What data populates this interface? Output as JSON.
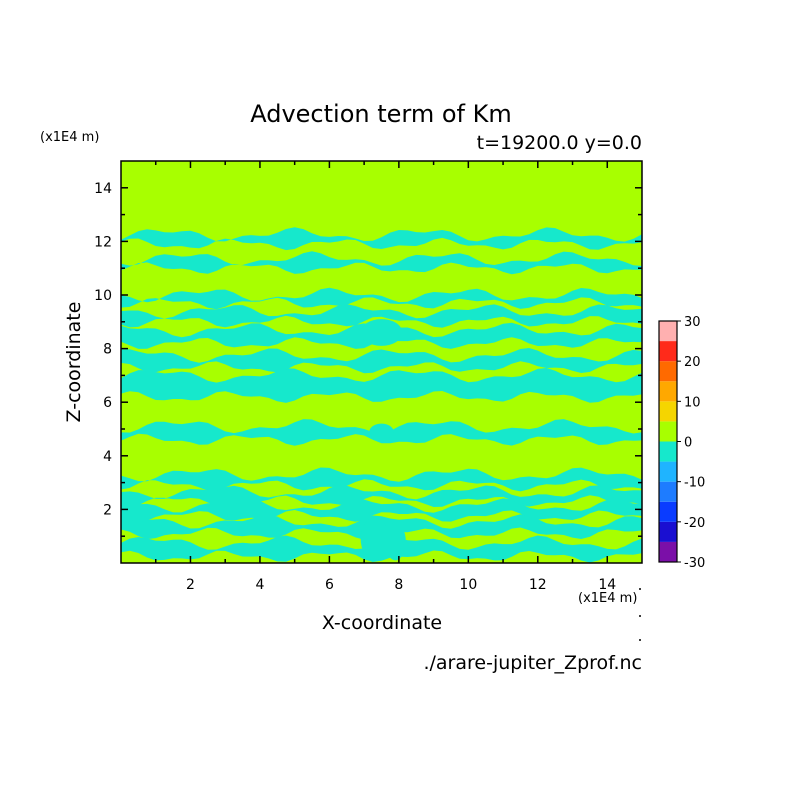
{
  "chart_data": {
    "type": "heatmap",
    "title": "Advection term of Km",
    "subtitle": "t=19200.0 y=0.0",
    "xlabel": "X-coordinate",
    "ylabel": "Z-coordinate",
    "x_unit": "(x1E4 m)",
    "y_unit": "(x1E4 m)",
    "xlim": [
      0,
      15
    ],
    "ylim": [
      0,
      15
    ],
    "x_ticks": [
      "2",
      "4",
      "6",
      "8",
      "10",
      "12",
      "14"
    ],
    "y_ticks": [
      "2",
      "4",
      "6",
      "8",
      "10",
      "12",
      "14"
    ],
    "source_file": "./arare-jupiter_Zprof.nc",
    "colorbar": {
      "levels": [
        -30,
        -25,
        -20,
        -15,
        -10,
        -5,
        0,
        5,
        10,
        15,
        20,
        25,
        30
      ],
      "tick_labels": [
        "-30",
        "-20",
        "-10",
        "0",
        "10",
        "20",
        "30"
      ],
      "colors": [
        "#7b0fa8",
        "#1a0fd1",
        "#0a3cff",
        "#1e7cff",
        "#1fb4ff",
        "#16e8cc",
        "#a8ff00",
        "#f5d500",
        "#ffa800",
        "#ff6a00",
        "#ff2a1a",
        "#ffb0b0"
      ]
    },
    "background_color": "#a8ff00",
    "negative_color": "#16e8cc",
    "negative_bands_z": [
      [
        0.25,
        0.75
      ],
      [
        1.1,
        1.55
      ],
      [
        1.75,
        2.15
      ],
      [
        2.3,
        2.65
      ],
      [
        2.9,
        3.3
      ],
      [
        4.6,
        5.1
      ],
      [
        6.2,
        7.0
      ],
      [
        7.3,
        7.75
      ],
      [
        8.2,
        8.7
      ],
      [
        9.0,
        9.4
      ],
      [
        9.7,
        10.0
      ],
      [
        11.0,
        11.35
      ],
      [
        11.9,
        12.25
      ]
    ]
  }
}
